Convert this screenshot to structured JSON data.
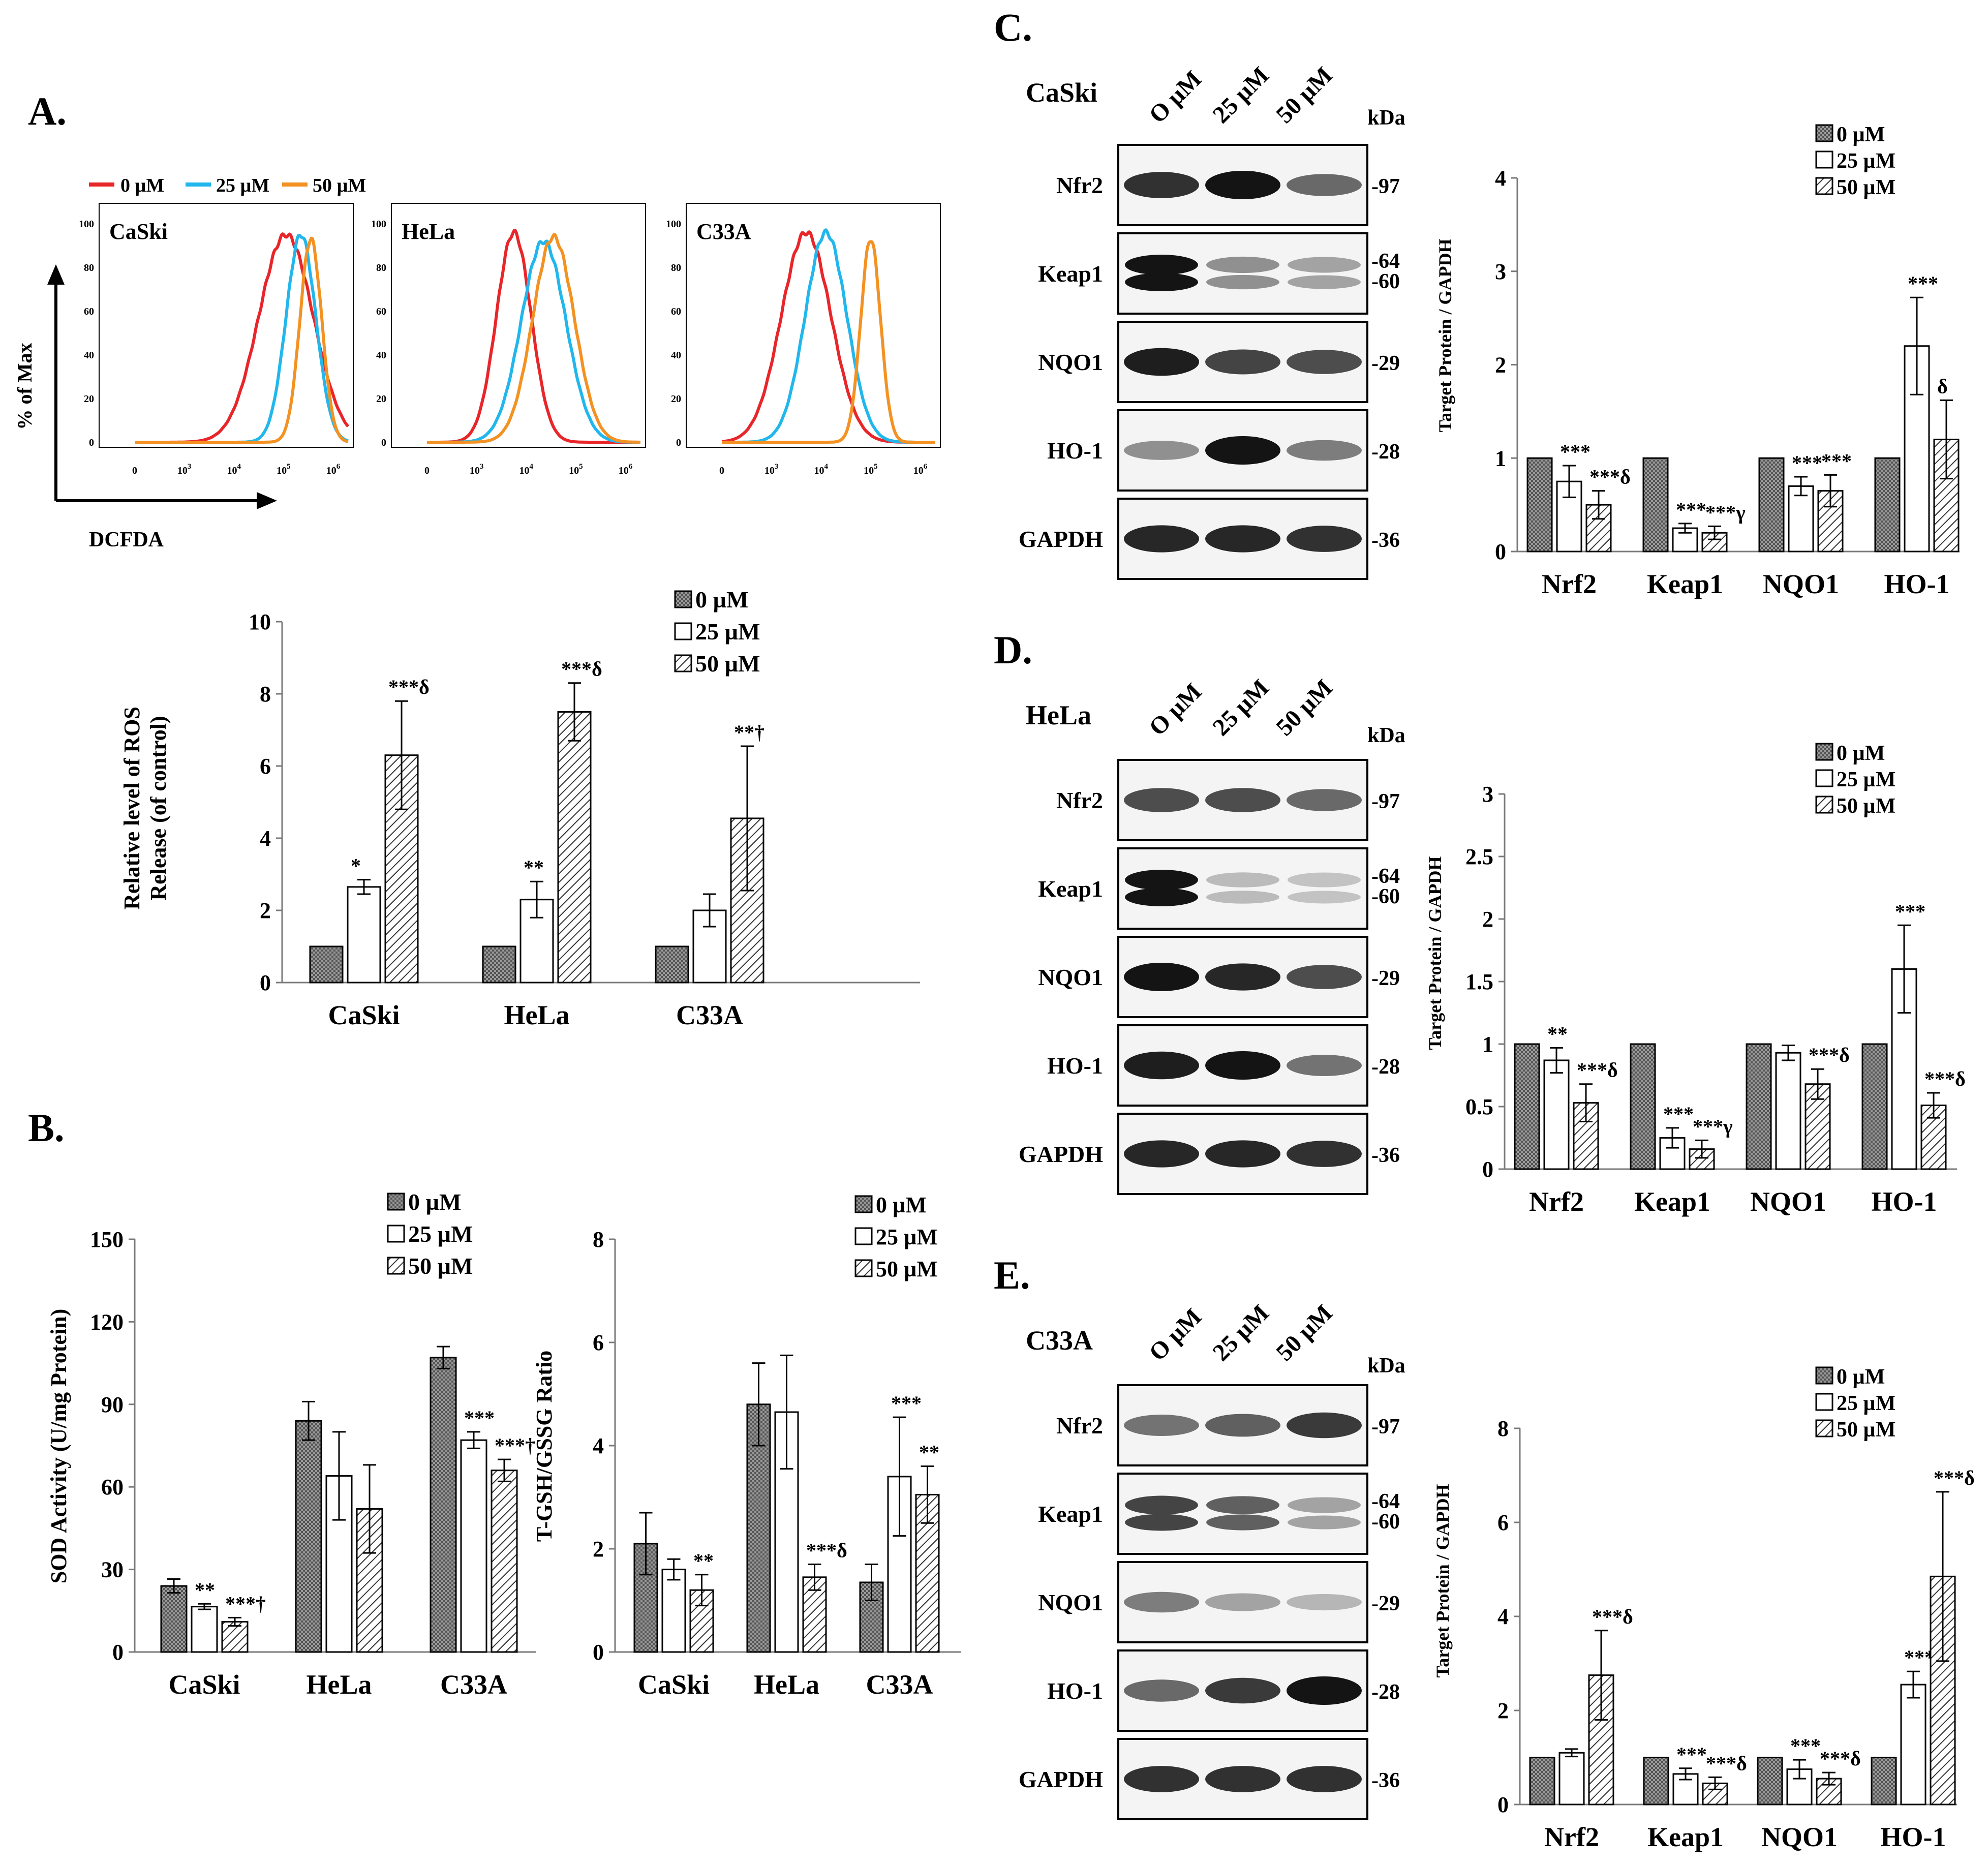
{
  "palette": {
    "dark": "#3b3b3b",
    "red": "#e8262a",
    "blue": "#21b7ec",
    "orange": "#f39222"
  },
  "labels": {
    "A": "A.",
    "B": "B.",
    "C": "C.",
    "D": "D.",
    "E": "E."
  },
  "flow": {
    "legend": [
      "0 µM",
      "25 µM",
      "50 µM"
    ],
    "ylabel": "% of Max",
    "xlabel": "DCFDA",
    "yticks": [
      "0",
      "20",
      "40",
      "60",
      "80",
      "100"
    ],
    "xticks": [
      "0",
      "10",
      "10",
      "10",
      "10"
    ],
    "xexp": [
      "",
      "3",
      "4",
      "5",
      "6"
    ],
    "panels": [
      {
        "name": "CaSki",
        "peaks": [
          {
            "m": 5.05,
            "s": 0.55,
            "h": 95
          },
          {
            "m": 5.35,
            "s": 0.3,
            "h": 95
          },
          {
            "m": 5.55,
            "s": 0.22,
            "h": 93
          }
        ]
      },
      {
        "name": "HeLa",
        "peaks": [
          {
            "m": 3.75,
            "s": 0.35,
            "h": 96
          },
          {
            "m": 4.35,
            "s": 0.45,
            "h": 92
          },
          {
            "m": 4.55,
            "s": 0.42,
            "h": 94
          }
        ]
      },
      {
        "name": "C33A",
        "peaks": [
          {
            "m": 3.7,
            "s": 0.5,
            "h": 96
          },
          {
            "m": 4.1,
            "s": 0.42,
            "h": 96
          },
          {
            "m": 5.0,
            "s": 0.2,
            "h": 93
          }
        ]
      }
    ]
  },
  "blot_cells": [
    "CaSki",
    "HeLa",
    "C33A"
  ],
  "blot": {
    "lanes": [
      "O µM",
      "25 µM",
      "50 µM"
    ],
    "kda": "kDa",
    "bands": [
      "Nfr2",
      "Keap1",
      "NQO1",
      "HO-1",
      "GAPDH"
    ],
    "mw": [
      "-97",
      "-64",
      "-60",
      "-29",
      "-28",
      "-36"
    ]
  },
  "chart_data": [
    {
      "id": "ros",
      "type": "bar",
      "title": "",
      "ylabel": [
        "Relative level of ROS",
        "Release (of control)"
      ],
      "categories": [
        "CaSki",
        "HeLa",
        "C33A"
      ],
      "ylim": [
        0,
        10
      ],
      "yticks": [
        "0",
        "2",
        "4",
        "6",
        "8",
        "10"
      ],
      "legend": [
        "0 µM",
        "25 µM",
        "50 µM"
      ],
      "series": [
        {
          "name": "0 µM",
          "values": [
            1,
            1,
            1
          ],
          "err": [
            0,
            0,
            0
          ]
        },
        {
          "name": "25 µM",
          "values": [
            2.65,
            2.3,
            2.0
          ],
          "err": [
            0.2,
            0.5,
            0.45
          ]
        },
        {
          "name": "50 µM",
          "values": [
            6.3,
            7.5,
            4.55
          ],
          "err": [
            1.5,
            0.8,
            2.0
          ]
        }
      ],
      "annotations": [
        [
          "",
          "*",
          "***δ"
        ],
        [
          "",
          "**",
          "***δ"
        ],
        [
          "",
          "",
          "**†"
        ]
      ]
    },
    {
      "id": "sod",
      "type": "bar",
      "ylabel": [
        "SOD Activity (U/mg Protein)"
      ],
      "categories": [
        "CaSki",
        "HeLa",
        "C33A"
      ],
      "ylim": [
        0,
        150
      ],
      "yticks": [
        "0",
        "30",
        "60",
        "90",
        "120",
        "150"
      ],
      "legend": [
        "0 µM",
        "25 µM",
        "50 µM"
      ],
      "series": [
        {
          "name": "0 µM",
          "values": [
            24,
            84,
            107
          ],
          "err": [
            2.5,
            7,
            4
          ]
        },
        {
          "name": "25 µM",
          "values": [
            16.5,
            64,
            77
          ],
          "err": [
            1,
            16,
            3
          ]
        },
        {
          "name": "50 µM",
          "values": [
            11,
            52,
            66
          ],
          "err": [
            1.5,
            16,
            4
          ]
        }
      ],
      "annotations": [
        [
          "",
          "**",
          "***†"
        ],
        [
          "",
          "",
          ""
        ],
        [
          "",
          "***",
          "***†"
        ]
      ]
    },
    {
      "id": "gsh",
      "type": "bar",
      "ylabel": [
        "T-GSH/GSSG Ratio"
      ],
      "categories": [
        "CaSki",
        "HeLa",
        "C33A"
      ],
      "ylim": [
        0,
        8
      ],
      "yticks": [
        "0",
        "2",
        "4",
        "6",
        "8"
      ],
      "legend": [
        "0 µM",
        "25 µM",
        "50 µM"
      ],
      "series": [
        {
          "name": "0 µM",
          "values": [
            2.1,
            4.8,
            1.35
          ],
          "err": [
            0.6,
            0.8,
            0.35
          ]
        },
        {
          "name": "25 µM",
          "values": [
            1.6,
            4.65,
            3.4
          ],
          "err": [
            0.2,
            1.1,
            1.15
          ]
        },
        {
          "name": "50 µM",
          "values": [
            1.2,
            1.45,
            3.05
          ],
          "err": [
            0.3,
            0.25,
            0.55
          ]
        }
      ],
      "annotations": [
        [
          "",
          "",
          "**"
        ],
        [
          "",
          "",
          "***δ"
        ],
        [
          "",
          "***",
          "**"
        ]
      ]
    },
    {
      "id": "wbC",
      "type": "bar",
      "ylabel": [
        "Target Protein / GAPDH"
      ],
      "categories": [
        "Nrf2",
        "Keap1",
        "NQO1",
        "HO-1"
      ],
      "ylim": [
        0,
        4
      ],
      "yticks": [
        "0",
        "1",
        "2",
        "3",
        "4"
      ],
      "legend": [
        "0  µM",
        "25  µM",
        "50  µM"
      ],
      "series": [
        {
          "name": "0 µM",
          "values": [
            1,
            1,
            1,
            1
          ],
          "err": [
            0,
            0,
            0,
            0
          ]
        },
        {
          "name": "25 µM",
          "values": [
            0.75,
            0.25,
            0.7,
            2.2
          ],
          "err": [
            0.17,
            0.05,
            0.1,
            0.52
          ]
        },
        {
          "name": "50 µM",
          "values": [
            0.5,
            0.2,
            0.65,
            1.2
          ],
          "err": [
            0.15,
            0.07,
            0.17,
            0.42
          ]
        }
      ],
      "annotations": [
        [
          "",
          "***",
          "***δ"
        ],
        [
          "",
          "***",
          "***γ"
        ],
        [
          "",
          "***",
          "***"
        ],
        [
          "",
          "***",
          "δ"
        ]
      ]
    },
    {
      "id": "wbD",
      "type": "bar",
      "ylabel": [
        "Target Protein / GAPDH"
      ],
      "categories": [
        "Nrf2",
        "Keap1",
        "NQO1",
        "HO-1"
      ],
      "ylim": [
        0,
        3
      ],
      "yticks": [
        "0",
        "0.5",
        "1",
        "1.5",
        "2",
        "2.5",
        "3"
      ],
      "legend": [
        "0  µM",
        "25  µM",
        "50  µM"
      ],
      "series": [
        {
          "name": "0 µM",
          "values": [
            1,
            1,
            1,
            1
          ],
          "err": [
            0,
            0,
            0,
            0
          ]
        },
        {
          "name": "25 µM",
          "values": [
            0.87,
            0.25,
            0.93,
            1.6
          ],
          "err": [
            0.1,
            0.08,
            0.06,
            0.35
          ]
        },
        {
          "name": "50 µM",
          "values": [
            0.53,
            0.16,
            0.68,
            0.51
          ],
          "err": [
            0.15,
            0.07,
            0.12,
            0.1
          ]
        }
      ],
      "annotations": [
        [
          "",
          "**",
          "***δ"
        ],
        [
          "",
          "***",
          "***γ"
        ],
        [
          "",
          "",
          "***δ"
        ],
        [
          "",
          "***",
          "***δ"
        ]
      ]
    },
    {
      "id": "wbE",
      "type": "bar",
      "ylabel": [
        "Target Protein / GAPDH"
      ],
      "categories": [
        "Nrf2",
        "Keap1",
        "NQO1",
        "HO-1"
      ],
      "ylim": [
        0,
        8
      ],
      "yticks": [
        "0",
        "2",
        "4",
        "6",
        "8"
      ],
      "legend": [
        "0 µM",
        "25  µM",
        "50  µM"
      ],
      "series": [
        {
          "name": "0 µM",
          "values": [
            1,
            1,
            1,
            1
          ],
          "err": [
            0,
            0,
            0,
            0
          ]
        },
        {
          "name": "25 µM",
          "values": [
            1.1,
            0.65,
            0.75,
            2.55
          ],
          "err": [
            0.08,
            0.12,
            0.2,
            0.28
          ]
        },
        {
          "name": "50 µM",
          "values": [
            2.75,
            0.45,
            0.55,
            4.85
          ],
          "err": [
            0.95,
            0.13,
            0.13,
            1.8
          ]
        }
      ],
      "annotations": [
        [
          "",
          "",
          "***δ"
        ],
        [
          "",
          "***",
          "***δ"
        ],
        [
          "",
          "***",
          "***δ"
        ],
        [
          "",
          "***",
          "***δ"
        ]
      ]
    }
  ]
}
